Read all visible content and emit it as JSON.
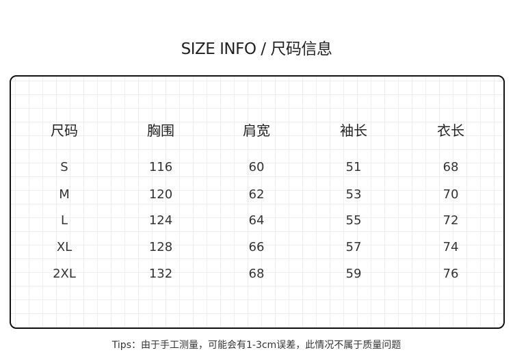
{
  "title": "SIZE INFO / 尺码信息",
  "table": {
    "headers": [
      "尺码",
      "胸围",
      "肩宽",
      "袖长",
      "衣长"
    ],
    "rows": [
      [
        "S",
        "116",
        "60",
        "51",
        "68"
      ],
      [
        "M",
        "120",
        "62",
        "53",
        "70"
      ],
      [
        "L",
        "124",
        "64",
        "55",
        "72"
      ],
      [
        "XL",
        "128",
        "66",
        "57",
        "74"
      ],
      [
        "2XL",
        "132",
        "68",
        "59",
        "76"
      ]
    ]
  },
  "tips": "Tips：由于手工测量，可能会有1-3cm误差，此情况不属于质量问题"
}
